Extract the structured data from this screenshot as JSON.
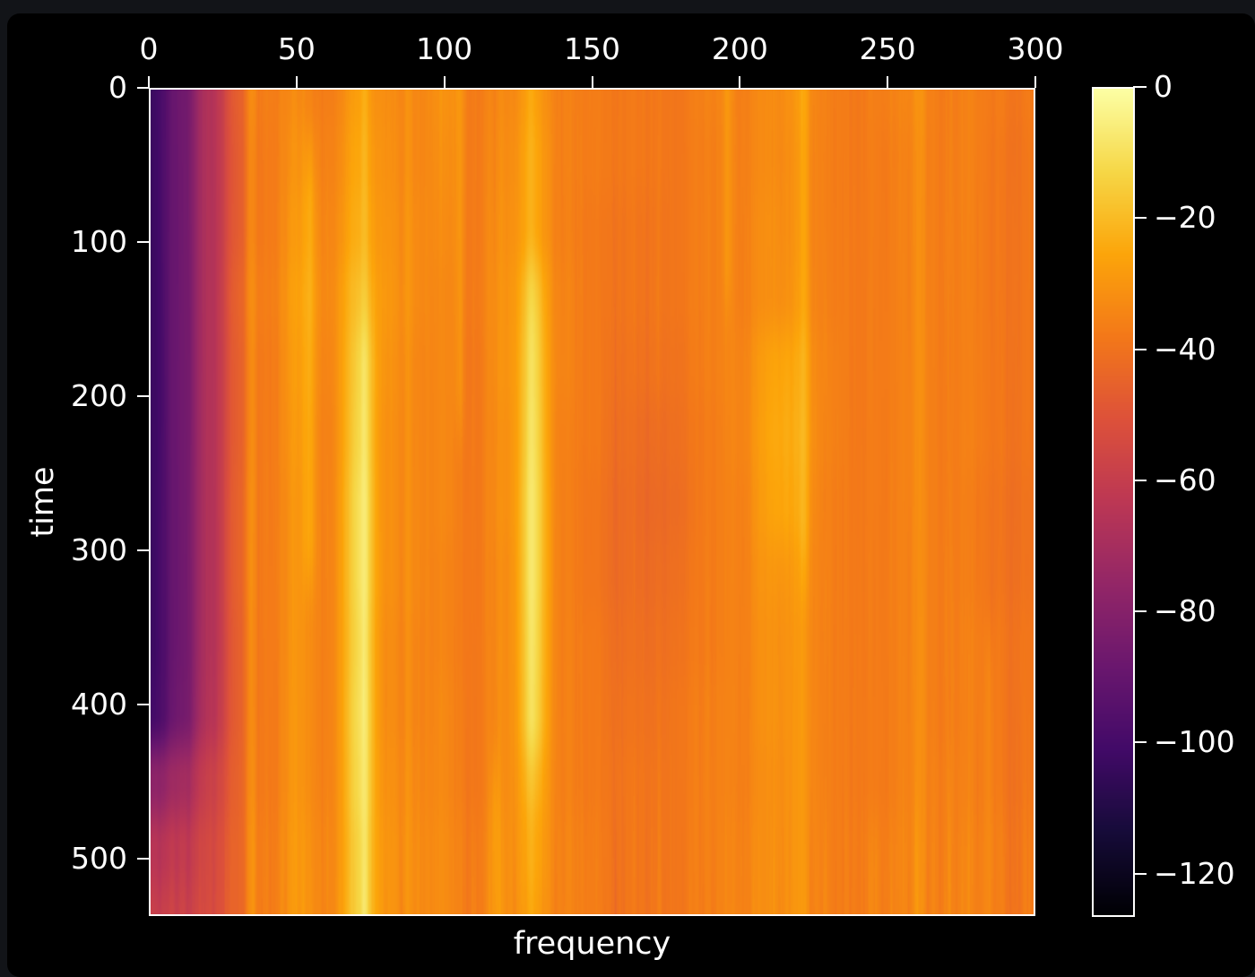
{
  "figure": {
    "background_color": "#000000",
    "page_background_color": "#121418",
    "axis_color": "#ffffff"
  },
  "chart_data": {
    "type": "heatmap",
    "title": "",
    "xlabel": "frequency",
    "ylabel": "time",
    "x_ticks": [
      0,
      50,
      100,
      150,
      200,
      250,
      300
    ],
    "x_tick_labels": [
      "0",
      "50",
      "100",
      "150",
      "200",
      "250",
      "300"
    ],
    "y_ticks": [
      0,
      100,
      200,
      300,
      400,
      500
    ],
    "y_tick_labels": [
      "0",
      "100",
      "200",
      "300",
      "400",
      "500"
    ],
    "x_range": [
      0,
      300
    ],
    "y_range": [
      0,
      537
    ],
    "grid_lines": false,
    "colormap": "inferno",
    "colorbar": {
      "ticks": [
        0,
        -20,
        -40,
        -60,
        -80,
        -100,
        -120
      ],
      "tick_labels": [
        "0",
        "−20",
        "−40",
        "−60",
        "−80",
        "−100",
        "−120"
      ],
      "value_range": [
        -126.6,
        0
      ],
      "position": "right"
    },
    "grid": {
      "description": "Approximate spectrogram magnitude in dB sampled on a coarse grid; rows = time 0..540 step 45, cols = frequency 0..300 step 10",
      "freq_step": 10,
      "time_step": 45,
      "values_db": [
        [
          -103,
          -88,
          -68,
          -46,
          -36,
          -33,
          -37,
          -28,
          -33,
          -35,
          -30,
          -37,
          -34,
          -28,
          -36,
          -37,
          -37,
          -39,
          -38,
          -35,
          -35,
          -33,
          -30,
          -36,
          -38,
          -36,
          -33,
          -38,
          -36,
          -38,
          -37
        ],
        [
          -103,
          -88,
          -68,
          -47,
          -37,
          -31,
          -36,
          -26,
          -32,
          -35,
          -31,
          -37,
          -33,
          -26,
          -36,
          -37,
          -37,
          -39,
          -38,
          -36,
          -35,
          -33,
          -31,
          -36,
          -38,
          -37,
          -34,
          -38,
          -36,
          -39,
          -38
        ],
        [
          -103,
          -88,
          -68,
          -47,
          -37,
          -29,
          -35,
          -24,
          -31,
          -34,
          -32,
          -37,
          -32,
          -26,
          -36,
          -38,
          -38,
          -40,
          -38,
          -36,
          -35,
          -32,
          -31,
          -36,
          -38,
          -37,
          -34,
          -38,
          -36,
          -39,
          -38
        ],
        [
          -103,
          -88,
          -68,
          -45,
          -36,
          -27,
          -34,
          -20,
          -30,
          -34,
          -33,
          -37,
          -31,
          -22,
          -35,
          -38,
          -38,
          -40,
          -38,
          -36,
          -35,
          -32,
          -30,
          -36,
          -38,
          -37,
          -34,
          -38,
          -36,
          -39,
          -38
        ],
        [
          -103,
          -88,
          -68,
          -46,
          -37,
          -28,
          -35,
          -18,
          -31,
          -35,
          -33,
          -38,
          -31,
          -20,
          -35,
          -38,
          -39,
          -41,
          -39,
          -36,
          -34,
          -28,
          -27,
          -35,
          -38,
          -37,
          -34,
          -38,
          -36,
          -39,
          -38
        ],
        [
          -103,
          -88,
          -68,
          -46,
          -37,
          -29,
          -36,
          -17,
          -32,
          -35,
          -33,
          -38,
          -32,
          -19,
          -36,
          -38,
          -40,
          -43,
          -40,
          -37,
          -34,
          -27,
          -26,
          -35,
          -38,
          -37,
          -34,
          -38,
          -36,
          -39,
          -38
        ],
        [
          -103,
          -88,
          -68,
          -45,
          -37,
          -30,
          -36,
          -15,
          -32,
          -35,
          -33,
          -38,
          -32,
          -18,
          -36,
          -39,
          -41,
          -44,
          -41,
          -37,
          -35,
          -28,
          -27,
          -36,
          -38,
          -37,
          -34,
          -38,
          -37,
          -40,
          -39
        ],
        [
          -103,
          -88,
          -68,
          -45,
          -37,
          -30,
          -36,
          -15,
          -32,
          -35,
          -34,
          -38,
          -33,
          -18,
          -36,
          -39,
          -41,
          -43,
          -40,
          -37,
          -35,
          -30,
          -29,
          -36,
          -38,
          -37,
          -34,
          -38,
          -37,
          -40,
          -39
        ],
        [
          -103,
          -88,
          -68,
          -46,
          -37,
          -30,
          -36,
          -16,
          -33,
          -36,
          -34,
          -38,
          -33,
          -19,
          -36,
          -38,
          -40,
          -42,
          -39,
          -37,
          -35,
          -31,
          -30,
          -36,
          -38,
          -37,
          -34,
          -38,
          -36,
          -39,
          -38
        ],
        [
          -101,
          -87,
          -67,
          -46,
          -37,
          -30,
          -36,
          -15,
          -33,
          -36,
          -33,
          -38,
          -33,
          -20,
          -36,
          -38,
          -39,
          -41,
          -38,
          -36,
          -35,
          -31,
          -30,
          -36,
          -38,
          -37,
          -34,
          -38,
          -36,
          -39,
          -38
        ],
        [
          -78,
          -72,
          -60,
          -45,
          -37,
          -30,
          -36,
          -16,
          -32,
          -35,
          -33,
          -38,
          -33,
          -23,
          -36,
          -38,
          -38,
          -40,
          -38,
          -36,
          -35,
          -32,
          -30,
          -36,
          -38,
          -37,
          -34,
          -37,
          -36,
          -39,
          -38
        ],
        [
          -64,
          -62,
          -56,
          -44,
          -36,
          -29,
          -35,
          -18,
          -31,
          -34,
          -32,
          -37,
          -32,
          -26,
          -35,
          -37,
          -38,
          -40,
          -38,
          -36,
          -34,
          -32,
          -30,
          -36,
          -37,
          -36,
          -33,
          -37,
          -35,
          -38,
          -37
        ],
        [
          -58,
          -58,
          -55,
          -44,
          -36,
          -29,
          -35,
          -18,
          -31,
          -34,
          -32,
          -37,
          -32,
          -28,
          -35,
          -37,
          -38,
          -40,
          -38,
          -36,
          -34,
          -32,
          -30,
          -36,
          -37,
          -36,
          -33,
          -37,
          -35,
          -38,
          -37
        ]
      ]
    },
    "streaks": [
      {
        "f": 34,
        "w": 1.6,
        "amp": 9,
        "t0": 0,
        "t1": 537
      },
      {
        "f": 54,
        "w": 1.6,
        "amp": 7,
        "t0": 40,
        "t1": 320
      },
      {
        "f": 73,
        "w": 1.3,
        "amp": 5,
        "t0": 0,
        "t1": 537
      },
      {
        "f": 73,
        "w": 2.4,
        "amp": 6,
        "t0": 150,
        "t1": 537
      },
      {
        "f": 88,
        "w": 1.2,
        "amp": 4,
        "t0": 0,
        "t1": 537
      },
      {
        "f": 105,
        "w": 1.3,
        "amp": 5,
        "t0": 0,
        "t1": 220
      },
      {
        "f": 117,
        "w": 1.2,
        "amp": 5,
        "t0": 440,
        "t1": 537
      },
      {
        "f": 129,
        "w": 1.3,
        "amp": 4,
        "t0": 0,
        "t1": 537
      },
      {
        "f": 130,
        "w": 2.6,
        "amp": 7,
        "t0": 120,
        "t1": 440
      },
      {
        "f": 196,
        "w": 1.1,
        "amp": 5,
        "t0": 0,
        "t1": 140
      },
      {
        "f": 215,
        "w": 3.5,
        "amp": 3,
        "t0": 160,
        "t1": 300
      },
      {
        "f": 222,
        "w": 1.3,
        "amp": 5,
        "t0": 0,
        "t1": 320
      },
      {
        "f": 262,
        "w": 1.2,
        "amp": 4,
        "t0": 0,
        "t1": 537
      },
      {
        "f": 285,
        "w": 1.1,
        "amp": 4,
        "t0": 360,
        "t1": 537
      },
      {
        "f": 246,
        "w": 1.0,
        "amp": 3,
        "t0": 480,
        "t1": 537
      }
    ]
  }
}
